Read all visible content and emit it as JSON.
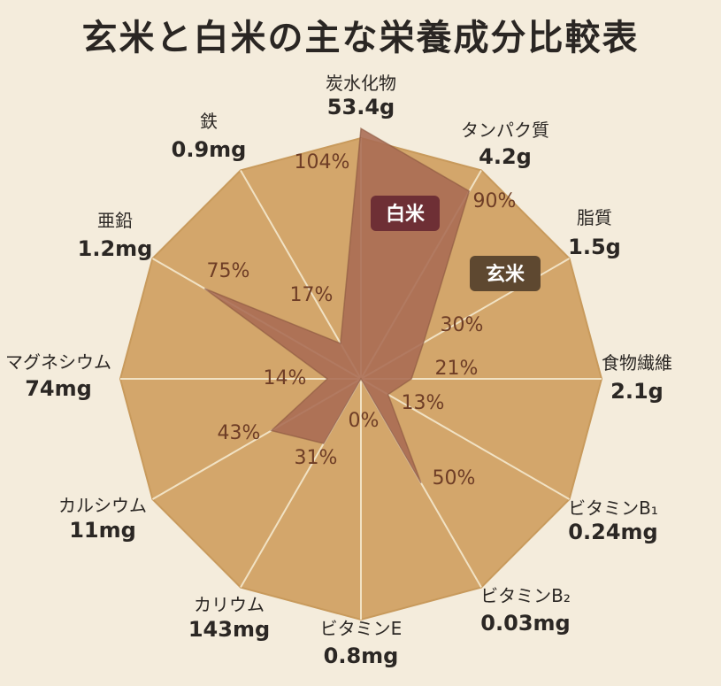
{
  "chart_data": {
    "type": "radar",
    "title": "玄米と白米の主な栄養成分比較表",
    "axes": [
      {
        "name": "炭水化物",
        "value": "53.4g"
      },
      {
        "name": "タンパク質",
        "value": "4.2g"
      },
      {
        "name": "脂質",
        "value": "1.5g"
      },
      {
        "name": "食物繊維",
        "value": "2.1g"
      },
      {
        "name": "ビタミンB₁",
        "value": "0.24mg"
      },
      {
        "name": "ビタミンB₂",
        "value": "0.03mg"
      },
      {
        "name": "ビタミンE",
        "value": "0.8mg"
      },
      {
        "name": "カリウム",
        "value": "143mg"
      },
      {
        "name": "カルシウム",
        "value": "11mg"
      },
      {
        "name": "マグネシウム",
        "value": "74mg"
      },
      {
        "name": "亜鉛",
        "value": "1.2mg"
      },
      {
        "name": "鉄",
        "value": "0.9mg"
      }
    ],
    "series": [
      {
        "name": "玄米",
        "values": [
          100,
          100,
          100,
          100,
          100,
          100,
          100,
          100,
          100,
          100,
          100,
          100
        ],
        "color": "#d3a66b"
      },
      {
        "name": "白米",
        "values": [
          104,
          90,
          30,
          21,
          13,
          50,
          0,
          31,
          43,
          14,
          75,
          17
        ],
        "color": "#a96b53"
      }
    ],
    "percent_labels": [
      "104%",
      "90%",
      "30%",
      "21%",
      "13%",
      "50%",
      "0%",
      "31%",
      "43%",
      "14%",
      "75%",
      "17%"
    ],
    "rmax": 100
  }
}
